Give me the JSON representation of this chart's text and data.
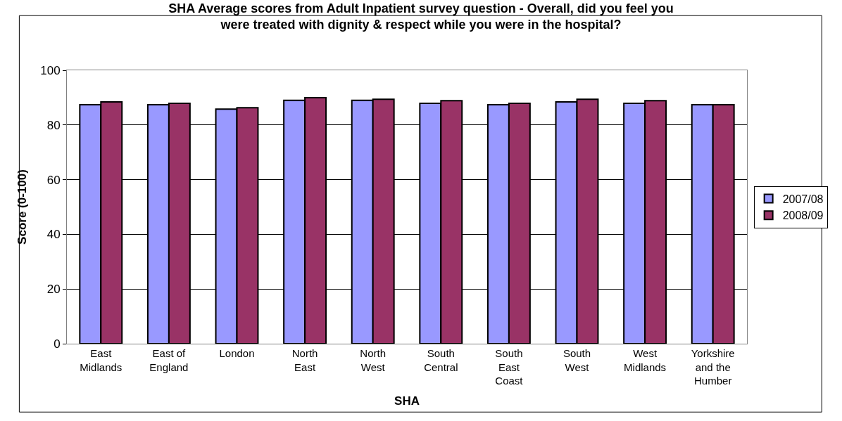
{
  "chart_data": {
    "type": "bar",
    "title": "SHA Average scores from Adult Inpatient survey question - Overall, did you feel you were treated with dignity & respect while you were in the hospital?",
    "xlabel": "SHA",
    "ylabel": "Score (0-100)",
    "categories": [
      "East Midlands",
      "East of England",
      "London",
      "North East",
      "North West",
      "South Central",
      "South East Coast",
      "South West",
      "West Midlands",
      "Yorkshire and the Humber"
    ],
    "series": [
      {
        "name": "2007/08",
        "color": "#9999ff",
        "values": [
          87.4,
          87.4,
          85.8,
          89.0,
          89.0,
          87.9,
          87.4,
          88.4,
          87.9,
          87.4
        ]
      },
      {
        "name": "2008/09",
        "color": "#993366",
        "values": [
          88.4,
          87.9,
          86.3,
          90.0,
          89.4,
          88.9,
          87.9,
          89.4,
          88.9,
          87.4
        ]
      }
    ],
    "ylim": [
      0,
      100
    ],
    "yticks": [
      0,
      20,
      40,
      60,
      80,
      100
    ],
    "grid": "y",
    "legend": "right"
  }
}
